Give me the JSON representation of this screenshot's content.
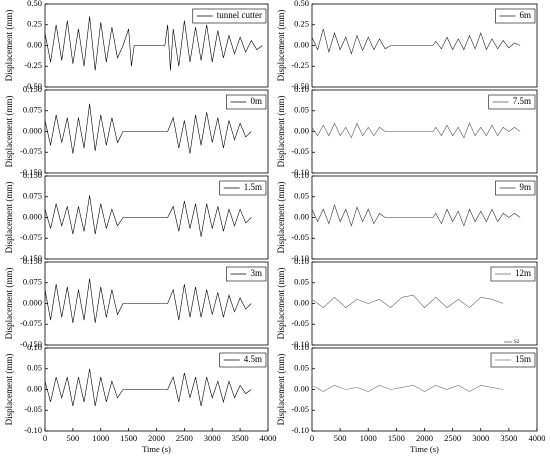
{
  "chart_data": [
    {
      "type": "line",
      "ylabel": "Displacement (mm)",
      "xlim": [
        0,
        4000
      ],
      "ylim": [
        -0.5,
        0.5
      ],
      "yticks": [
        {
          "value": 0.5,
          "label": "0.50"
        },
        {
          "value": 0.25,
          "label": "0.25"
        },
        {
          "value": 0,
          "label": "0.00"
        },
        {
          "value": -0.25,
          "label": "-0.25"
        },
        {
          "value": -0.5,
          "label": "-0.50"
        }
      ],
      "x": [
        0,
        100,
        200,
        300,
        400,
        500,
        600,
        700,
        800,
        900,
        1000,
        1100,
        1200,
        1300,
        1400,
        1500,
        1550,
        1600,
        2150,
        2200,
        2250,
        2300,
        2400,
        2500,
        2600,
        2700,
        2800,
        2900,
        3000,
        3100,
        3200,
        3300,
        3400,
        3500,
        3600,
        3700,
        3800,
        3900
      ],
      "series": [
        {
          "name": "tunnel cutter",
          "color": "#000000",
          "values": [
            0.15,
            -0.2,
            0.25,
            -0.18,
            0.3,
            -0.22,
            0.2,
            -0.25,
            0.35,
            -0.3,
            0.28,
            -0.2,
            0.22,
            -0.15,
            0,
            0.2,
            -0.25,
            0,
            0,
            0.25,
            -0.3,
            0.2,
            -0.25,
            0.3,
            -0.2,
            0.22,
            -0.18,
            0.25,
            -0.2,
            0.18,
            -0.15,
            0.12,
            -0.1,
            0.1,
            -0.08,
            0.06,
            -0.05,
            0
          ]
        }
      ]
    },
    {
      "type": "line",
      "ylabel": "Displacement (mm)",
      "xlim": [
        0,
        4000
      ],
      "ylim": [
        -0.15,
        0.15
      ],
      "yticks": [
        {
          "value": 0.15,
          "label": "0.150"
        },
        {
          "value": 0.075,
          "label": "0.075"
        },
        {
          "value": 0,
          "label": "0.000"
        },
        {
          "value": -0.075,
          "label": "-0.075"
        },
        {
          "value": -0.15,
          "label": "-0.150"
        }
      ],
      "x": [
        0,
        100,
        200,
        300,
        400,
        500,
        600,
        700,
        800,
        900,
        1000,
        1100,
        1200,
        1300,
        1400,
        2200,
        2300,
        2400,
        2500,
        2600,
        2700,
        2800,
        2900,
        3000,
        3100,
        3200,
        3300,
        3400,
        3500,
        3600,
        3700
      ],
      "series": [
        {
          "name": "0m",
          "color": "#000000",
          "values": [
            0.04,
            -0.05,
            0.06,
            -0.04,
            0.05,
            -0.08,
            0.05,
            -0.06,
            0.1,
            -0.07,
            0.06,
            -0.05,
            0.05,
            -0.04,
            0,
            0,
            0.05,
            -0.06,
            0.04,
            -0.08,
            0.06,
            -0.05,
            0.07,
            -0.04,
            0.05,
            -0.06,
            0.04,
            -0.03,
            0.03,
            -0.02,
            0
          ]
        }
      ]
    },
    {
      "type": "line",
      "ylabel": "Displacement (mm)",
      "xlim": [
        0,
        4000
      ],
      "ylim": [
        -0.15,
        0.15
      ],
      "yticks": [
        {
          "value": 0.15,
          "label": "0.150"
        },
        {
          "value": 0.075,
          "label": "0.075"
        },
        {
          "value": 0,
          "label": "0.000"
        },
        {
          "value": -0.075,
          "label": "-0.075"
        },
        {
          "value": -0.15,
          "label": "-0.150"
        }
      ],
      "x": [
        0,
        100,
        200,
        300,
        400,
        500,
        600,
        700,
        800,
        900,
        1000,
        1100,
        1200,
        1300,
        1400,
        2200,
        2300,
        2400,
        2500,
        2600,
        2700,
        2800,
        2900,
        3000,
        3100,
        3200,
        3300,
        3400,
        3500,
        3600,
        3700
      ],
      "series": [
        {
          "name": "1.5m",
          "color": "#000000",
          "values": [
            0.03,
            -0.04,
            0.05,
            -0.03,
            0.04,
            -0.06,
            0.04,
            -0.05,
            0.08,
            -0.06,
            0.05,
            -0.04,
            0.03,
            -0.03,
            0,
            0,
            0.04,
            -0.05,
            0.06,
            -0.04,
            0.05,
            -0.07,
            0.05,
            -0.04,
            0.04,
            -0.05,
            0.03,
            -0.03,
            0.03,
            -0.02,
            0
          ]
        }
      ]
    },
    {
      "type": "line",
      "ylabel": "Displacement (mm)",
      "xlim": [
        0,
        4000
      ],
      "ylim": [
        -0.15,
        0.15
      ],
      "yticks": [
        {
          "value": 0.15,
          "label": "0.150"
        },
        {
          "value": 0.075,
          "label": "0.075"
        },
        {
          "value": 0,
          "label": "0.000"
        },
        {
          "value": -0.075,
          "label": "-0.075"
        },
        {
          "value": -0.15,
          "label": "-0.150"
        }
      ],
      "x": [
        0,
        100,
        200,
        300,
        400,
        500,
        600,
        700,
        800,
        900,
        1000,
        1100,
        1200,
        1300,
        1400,
        2200,
        2300,
        2400,
        2500,
        2600,
        2700,
        2800,
        2900,
        3000,
        3100,
        3200,
        3300,
        3400,
        3500,
        3600,
        3700
      ],
      "series": [
        {
          "name": "3m",
          "color": "#000000",
          "values": [
            0.05,
            -0.06,
            0.07,
            -0.05,
            0.06,
            -0.07,
            0.05,
            -0.06,
            0.09,
            -0.07,
            0.06,
            -0.05,
            0.05,
            -0.04,
            0,
            0,
            0.05,
            -0.06,
            0.07,
            -0.05,
            0.06,
            -0.05,
            0.05,
            -0.04,
            0.04,
            -0.05,
            0.03,
            -0.03,
            0.02,
            -0.02,
            0
          ]
        }
      ]
    },
    {
      "type": "line",
      "ylabel": "Displacement (mm)",
      "xlabel": "Time (s)",
      "xlim": [
        0,
        4000
      ],
      "xticks": [
        0,
        500,
        1000,
        1500,
        2000,
        2500,
        3000,
        3500,
        4000
      ],
      "ylim": [
        -0.1,
        0.1
      ],
      "yticks": [
        {
          "value": 0.1,
          "label": "0.10"
        },
        {
          "value": 0.05,
          "label": "0.05"
        },
        {
          "value": 0,
          "label": "0.00"
        },
        {
          "value": -0.05,
          "label": "-0.05"
        },
        {
          "value": -0.1,
          "label": "-0.10"
        }
      ],
      "x": [
        0,
        100,
        200,
        300,
        400,
        500,
        600,
        700,
        800,
        900,
        1000,
        1100,
        1200,
        1300,
        1400,
        2200,
        2300,
        2400,
        2500,
        2600,
        2700,
        2800,
        2900,
        3000,
        3100,
        3200,
        3300,
        3400,
        3500,
        3600,
        3700
      ],
      "series": [
        {
          "name": "4.5m",
          "color": "#000000",
          "values": [
            0.02,
            -0.03,
            0.03,
            -0.02,
            0.03,
            -0.04,
            0.03,
            -0.03,
            0.05,
            -0.04,
            0.03,
            -0.03,
            0.02,
            -0.02,
            0,
            0,
            0.03,
            -0.03,
            0.04,
            -0.02,
            0.03,
            -0.04,
            0.03,
            -0.02,
            0.02,
            -0.03,
            0.02,
            -0.02,
            0.01,
            -0.01,
            0
          ]
        }
      ]
    },
    {
      "type": "line",
      "ylabel": "Displacement (mm)",
      "xlim": [
        0,
        4000
      ],
      "ylim": [
        -0.5,
        0.5
      ],
      "yticks": [
        {
          "value": 0.5,
          "label": "0.50"
        },
        {
          "value": 0.25,
          "label": "0.25"
        },
        {
          "value": 0,
          "label": "0.00"
        },
        {
          "value": -0.25,
          "label": "-0.25"
        },
        {
          "value": -0.5,
          "label": "-0.50"
        }
      ],
      "x": [
        0,
        100,
        200,
        300,
        400,
        500,
        600,
        700,
        800,
        900,
        1000,
        1100,
        1200,
        1300,
        1400,
        2150,
        2200,
        2300,
        2400,
        2500,
        2600,
        2700,
        2800,
        2900,
        3000,
        3100,
        3200,
        3300,
        3400,
        3500,
        3600,
        3700
      ],
      "series": [
        {
          "name": "6m",
          "color": "#222222",
          "values": [
            0.1,
            -0.05,
            0.2,
            -0.08,
            0.15,
            -0.05,
            0.1,
            -0.1,
            0.12,
            -0.06,
            0.1,
            -0.05,
            0.08,
            -0.04,
            0,
            0,
            0.05,
            -0.04,
            0.1,
            -0.05,
            0.08,
            -0.05,
            0.12,
            -0.04,
            0.15,
            -0.05,
            0.08,
            -0.04,
            0.06,
            -0.03,
            0.03,
            0
          ]
        }
      ]
    },
    {
      "type": "line",
      "ylabel": "Displacement (mm)",
      "xlim": [
        0,
        4000
      ],
      "ylim": [
        -0.1,
        0.1
      ],
      "yticks": [
        {
          "value": 0.1,
          "label": "0.10"
        },
        {
          "value": 0.05,
          "label": "0.05"
        },
        {
          "value": 0,
          "label": "0.00"
        },
        {
          "value": -0.05,
          "label": "-0.05"
        },
        {
          "value": -0.1,
          "label": "-0.10"
        }
      ],
      "x": [
        0,
        100,
        200,
        300,
        400,
        500,
        600,
        700,
        800,
        900,
        1000,
        1100,
        1200,
        1300,
        1400,
        2150,
        2200,
        2300,
        2400,
        2500,
        2600,
        2700,
        2800,
        2900,
        3000,
        3100,
        3200,
        3300,
        3400,
        3500,
        3600,
        3700
      ],
      "series": [
        {
          "name": "7.5m",
          "color": "#555555",
          "values": [
            0.01,
            -0.01,
            0.015,
            -0.01,
            0.02,
            -0.01,
            0.01,
            -0.015,
            0.02,
            -0.01,
            0.01,
            -0.01,
            0.01,
            0,
            0,
            0,
            0.01,
            -0.01,
            0.015,
            -0.01,
            0.01,
            -0.015,
            0.02,
            -0.01,
            0.01,
            -0.01,
            0.015,
            -0.01,
            0.01,
            0,
            0.01,
            0
          ]
        }
      ]
    },
    {
      "type": "line",
      "ylabel": "Displacement (mm)",
      "xlim": [
        0,
        4000
      ],
      "ylim": [
        -0.1,
        0.1
      ],
      "yticks": [
        {
          "value": 0.1,
          "label": "0.10"
        },
        {
          "value": 0.05,
          "label": "0.05"
        },
        {
          "value": 0,
          "label": "0.00"
        },
        {
          "value": -0.05,
          "label": "-0.05"
        },
        {
          "value": -0.1,
          "label": "-0.10"
        }
      ],
      "x": [
        0,
        100,
        200,
        300,
        400,
        500,
        600,
        700,
        800,
        900,
        1000,
        1100,
        1200,
        1300,
        1400,
        2150,
        2200,
        2300,
        2400,
        2500,
        2600,
        2700,
        2800,
        2900,
        3000,
        3100,
        3200,
        3300,
        3400,
        3500,
        3600,
        3700
      ],
      "series": [
        {
          "name": "9m",
          "color": "#333333",
          "values": [
            0.02,
            -0.01,
            0.02,
            -0.015,
            0.03,
            -0.01,
            0.02,
            -0.02,
            0.025,
            -0.01,
            0.02,
            -0.015,
            0.01,
            0,
            0,
            0,
            0.01,
            -0.015,
            0.02,
            -0.01,
            0.015,
            -0.02,
            0.02,
            -0.01,
            0.015,
            -0.01,
            0.02,
            -0.01,
            0.01,
            0,
            0.01,
            0
          ]
        }
      ]
    },
    {
      "type": "line",
      "ylabel": "Displacement (mm)",
      "annotation": "S2",
      "xlim": [
        0,
        4000
      ],
      "ylim": [
        -0.1,
        0.1
      ],
      "yticks": [
        {
          "value": 0.1,
          "label": "0.10"
        },
        {
          "value": 0.05,
          "label": "0.05"
        },
        {
          "value": 0,
          "label": "0.00"
        },
        {
          "value": -0.05,
          "label": "-0.05"
        },
        {
          "value": -0.1,
          "label": "-0.10"
        }
      ],
      "x": [
        0,
        200,
        400,
        600,
        800,
        1000,
        1200,
        1400,
        1600,
        1800,
        2000,
        2200,
        2400,
        2600,
        2800,
        3000,
        3200,
        3400
      ],
      "series": [
        {
          "name": "12m",
          "color": "#666666",
          "values": [
            0.01,
            -0.01,
            0.015,
            -0.01,
            0.01,
            0,
            0.01,
            -0.01,
            0.015,
            0.02,
            -0.01,
            0.015,
            -0.01,
            0.01,
            -0.01,
            0.015,
            0.01,
            0
          ]
        }
      ]
    },
    {
      "type": "line",
      "ylabel": "Displacement (mm)",
      "xlabel": "Time (s)",
      "xlim": [
        0,
        4000
      ],
      "xticks": [
        0,
        500,
        1000,
        1500,
        2000,
        2500,
        3000,
        3500,
        4000
      ],
      "ylim": [
        -0.1,
        0.1
      ],
      "yticks": [
        {
          "value": 0.1,
          "label": "0.10"
        },
        {
          "value": 0.05,
          "label": "0.05"
        },
        {
          "value": 0,
          "label": "0.00"
        },
        {
          "value": -0.05,
          "label": "-0.05"
        },
        {
          "value": -0.1,
          "label": "-0.10"
        }
      ],
      "x": [
        0,
        200,
        400,
        600,
        800,
        1000,
        1200,
        1400,
        1600,
        1800,
        2000,
        2200,
        2400,
        2600,
        2800,
        3000,
        3200,
        3400
      ],
      "series": [
        {
          "name": "15m",
          "color": "#777777",
          "values": [
            0.01,
            -0.005,
            0.01,
            0,
            0.005,
            -0.005,
            0.01,
            0,
            0.005,
            0.01,
            -0.005,
            0.01,
            0,
            0.01,
            -0.005,
            0.01,
            0.005,
            0
          ]
        }
      ]
    }
  ]
}
